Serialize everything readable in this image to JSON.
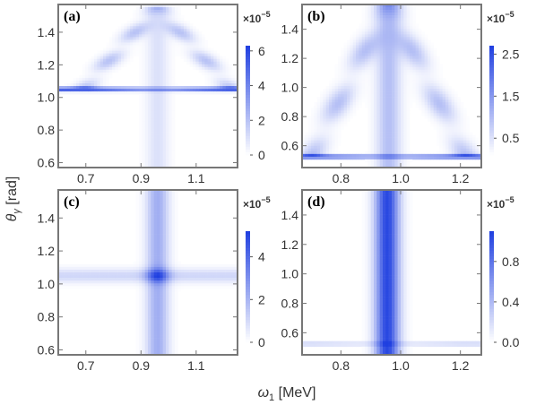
{
  "figure": {
    "xlabel_symbol": "ω",
    "xlabel_sub": "1",
    "xlabel_unit": " [MeV]",
    "ylabel_symbol": "θ",
    "ylabel_sub": "γ",
    "ylabel_unit": " [rad]"
  },
  "colors": {
    "max": "#1f3fe0",
    "min": "#ffffff",
    "frame": "#777777"
  },
  "chart_data": [
    {
      "type": "heatmap",
      "label": "(a)",
      "xlim": [
        0.6,
        1.25
      ],
      "ylim": [
        0.57,
        1.57
      ],
      "xticks": [
        {
          "v": 0.7,
          "t": "0.7"
        },
        {
          "v": 0.9,
          "t": "0.9"
        },
        {
          "v": 1.1,
          "t": "1.1"
        }
      ],
      "yticks": [
        {
          "v": 0.6,
          "t": "0.6"
        },
        {
          "v": 0.8,
          "t": "0.8"
        },
        {
          "v": 1.0,
          "t": "1.0"
        },
        {
          "v": 1.2,
          "t": "1.2"
        },
        {
          "v": 1.4,
          "t": "1.4"
        }
      ],
      "colorbar": {
        "min": 0,
        "max": 6.3,
        "ticks": [
          {
            "v": 0,
            "t": "0"
          },
          {
            "v": 2,
            "t": "2"
          },
          {
            "v": 4,
            "t": "4"
          },
          {
            "v": 6,
            "t": "6"
          }
        ],
        "multiplier_base": "×10",
        "multiplier_exp": "−5"
      },
      "features": {
        "center_x": 0.96,
        "resonance_y": 1.05,
        "triangle_apex_y": 1.55,
        "triangle_half_width": 0.27,
        "band_peak": 6.0,
        "vertical_amp": 1.0,
        "triangle_amp": 2.0,
        "cross_amp": 0
      }
    },
    {
      "type": "heatmap",
      "label": "(b)",
      "xlim": [
        0.67,
        1.27
      ],
      "ylim": [
        0.45,
        1.57
      ],
      "xticks": [
        {
          "v": 0.8,
          "t": "0.8"
        },
        {
          "v": 1.0,
          "t": "1.0"
        },
        {
          "v": 1.2,
          "t": "1.2"
        }
      ],
      "yticks": [
        {
          "v": 0.6,
          "t": "0.6"
        },
        {
          "v": 0.8,
          "t": "0.8"
        },
        {
          "v": 1.0,
          "t": "1.0"
        },
        {
          "v": 1.2,
          "t": "1.2"
        },
        {
          "v": 1.4,
          "t": "1.4"
        }
      ],
      "colorbar": {
        "min": 0.1,
        "max": 2.7,
        "ticks": [
          {
            "v": 0.5,
            "t": "0.5"
          },
          {
            "v": 1.5,
            "t": "1.5"
          },
          {
            "v": 2.5,
            "t": "2.5"
          }
        ],
        "multiplier_base": "×10",
        "multiplier_exp": "−5"
      },
      "features": {
        "center_x": 0.96,
        "resonance_y": 0.525,
        "triangle_apex_y": 1.57,
        "triangle_half_width": 0.26,
        "band_peak": 2.6,
        "vertical_amp": 0.9,
        "triangle_amp": 0.9,
        "cross_amp": 0
      }
    },
    {
      "type": "heatmap",
      "label": "(c)",
      "xlim": [
        0.6,
        1.25
      ],
      "ylim": [
        0.57,
        1.57
      ],
      "xticks": [
        {
          "v": 0.7,
          "t": "0.7"
        },
        {
          "v": 0.9,
          "t": "0.9"
        },
        {
          "v": 1.1,
          "t": "1.1"
        }
      ],
      "yticks": [
        {
          "v": 0.6,
          "t": "0.6"
        },
        {
          "v": 0.8,
          "t": "0.8"
        },
        {
          "v": 1.0,
          "t": "1.0"
        },
        {
          "v": 1.2,
          "t": "1.2"
        },
        {
          "v": 1.4,
          "t": "1.4"
        }
      ],
      "colorbar": {
        "min": 0,
        "max": 5.2,
        "ticks": [
          {
            "v": 0,
            "t": "0"
          },
          {
            "v": 2,
            "t": "2"
          },
          {
            "v": 4,
            "t": "4"
          }
        ],
        "multiplier_base": "×10",
        "multiplier_exp": "−5"
      },
      "features": {
        "center_x": 0.96,
        "resonance_y": 1.05,
        "triangle_apex_y": 0,
        "triangle_half_width": 0,
        "band_peak": 0,
        "vertical_amp": 2.2,
        "triangle_amp": 0,
        "cross_amp": 2.0
      }
    },
    {
      "type": "heatmap",
      "label": "(d)",
      "xlim": [
        0.67,
        1.27
      ],
      "ylim": [
        0.45,
        1.57
      ],
      "xticks": [
        {
          "v": 0.8,
          "t": "0.8"
        },
        {
          "v": 1.0,
          "t": "1.0"
        },
        {
          "v": 1.2,
          "t": "1.2"
        }
      ],
      "yticks": [
        {
          "v": 0.6,
          "t": "0.6"
        },
        {
          "v": 0.8,
          "t": "0.8"
        },
        {
          "v": 1.0,
          "t": "1.0"
        },
        {
          "v": 1.2,
          "t": "1.2"
        },
        {
          "v": 1.4,
          "t": "1.4"
        }
      ],
      "colorbar": {
        "min": 0,
        "max": 1.1,
        "ticks": [
          {
            "v": 0.0,
            "t": "0.0"
          },
          {
            "v": 0.4,
            "t": "0.4"
          },
          {
            "v": 0.8,
            "t": "0.8"
          }
        ],
        "multiplier_base": "×10",
        "multiplier_exp": "−5"
      },
      "features": {
        "center_x": 0.955,
        "resonance_y": 0.525,
        "triangle_apex_y": 0,
        "triangle_half_width": 0,
        "band_peak": 0.3,
        "vertical_amp": 1.05,
        "triangle_amp": 0,
        "cross_amp": 0
      }
    }
  ]
}
